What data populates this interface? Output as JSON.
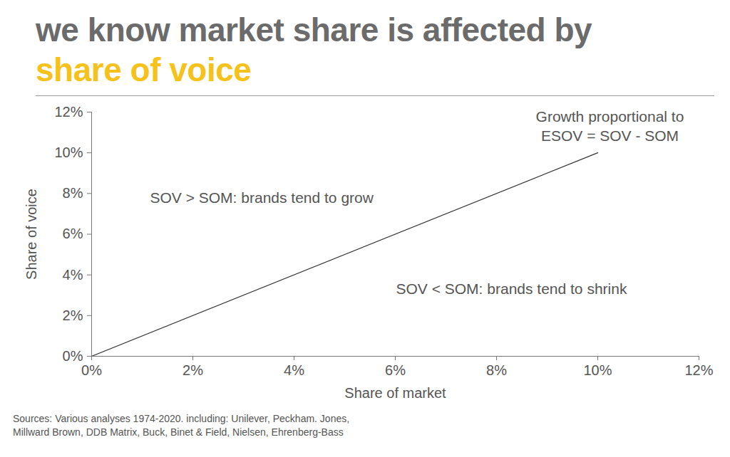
{
  "chart_data": {
    "type": "line",
    "title": "we know market share is affected by",
    "subtitle": "share of voice",
    "x_label": "Share of market",
    "y_label": "Share of voice",
    "x": [
      0,
      10
    ],
    "series": [
      {
        "name": "ESOV",
        "color": "#333333",
        "values": [
          0,
          10
        ]
      }
    ],
    "xlim": [
      0,
      12
    ],
    "ylim": [
      0,
      12
    ],
    "xticks": [
      {
        "value": 0,
        "label": "0%"
      },
      {
        "value": 2,
        "label": "2%"
      },
      {
        "value": 4,
        "label": "4%"
      },
      {
        "value": 6,
        "label": "6%"
      },
      {
        "value": 8,
        "label": "8%"
      },
      {
        "value": 10,
        "label": "10%"
      },
      {
        "value": 12,
        "label": "12%"
      }
    ],
    "yticks": [
      {
        "value": 0,
        "label": "0%"
      },
      {
        "value": 2,
        "label": "2%"
      },
      {
        "value": 4,
        "label": "4%"
      },
      {
        "value": 6,
        "label": "6%"
      },
      {
        "value": 8,
        "label": "8%"
      },
      {
        "value": 10,
        "label": "10%"
      },
      {
        "value": 12,
        "label": "12%"
      }
    ],
    "grid": false,
    "annotations": [
      "Growth proportional to\nESOV = SOV - SOM",
      "SOV > SOM: brands tend to grow",
      "SOV < SOM: brands tend to shrink"
    ],
    "source": "Sources: Various analyses 1974-2020. including: Unilever, Peckham. Jones, Millward Brown, DDB Matrix, Buck, Binet & Field, Nielsen, Ehrenberg-Bass"
  }
}
